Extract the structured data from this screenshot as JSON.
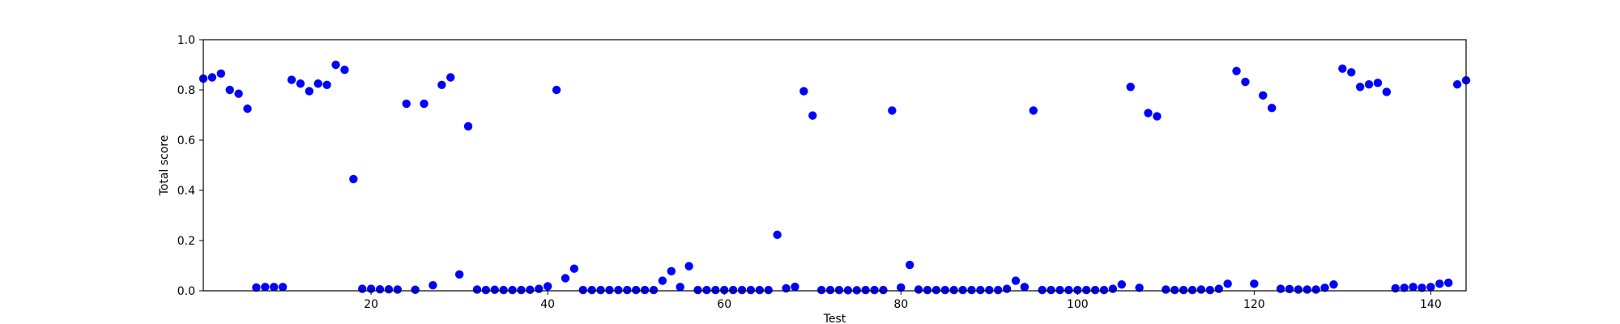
{
  "chart_data": {
    "type": "scatter",
    "xlabel": "Test",
    "ylabel": "Total score",
    "xlim": [
      1,
      144
    ],
    "ylim": [
      0.0,
      1.0
    ],
    "xticks": [
      20,
      40,
      60,
      80,
      100,
      120,
      140
    ],
    "yticks": [
      0.0,
      0.2,
      0.4,
      0.6,
      0.8,
      1.0
    ],
    "ytick_labels": [
      "0.0",
      "0.2",
      "0.4",
      "0.6",
      "0.8",
      "1.0"
    ],
    "grid": false,
    "marker_color": "#0000ff",
    "series": [
      {
        "x": [
          1,
          2,
          3,
          4,
          5,
          6,
          7,
          8,
          9,
          10,
          11,
          12,
          13,
          14,
          15,
          16,
          17,
          18,
          19,
          20,
          21,
          22,
          23,
          24,
          25,
          26,
          27,
          28,
          29,
          30,
          31,
          32,
          33,
          34,
          35,
          36,
          37,
          38,
          39,
          40,
          41,
          42,
          43,
          44,
          45,
          46,
          47,
          48,
          49,
          50,
          51,
          52,
          53,
          54,
          55,
          56,
          57,
          58,
          59,
          60,
          61,
          62,
          63,
          64,
          65,
          66,
          67,
          68,
          69,
          70,
          71,
          72,
          73,
          74,
          75,
          76,
          77,
          78,
          79,
          80,
          81,
          82,
          83,
          84,
          85,
          86,
          87,
          88,
          89,
          90,
          91,
          92,
          93,
          94,
          95,
          96,
          97,
          98,
          99,
          100,
          101,
          102,
          103,
          104,
          105,
          106,
          107,
          108,
          109,
          110,
          111,
          112,
          113,
          114,
          115,
          116,
          117,
          118,
          119,
          120,
          121,
          122,
          123,
          124,
          125,
          126,
          127,
          128,
          129,
          130,
          131,
          132,
          133,
          134,
          135,
          136,
          137,
          138,
          139,
          140,
          141,
          142,
          143,
          144
        ],
        "y": [
          0.845,
          0.85,
          0.865,
          0.8,
          0.785,
          0.725,
          0.013,
          0.015,
          0.015,
          0.015,
          0.84,
          0.825,
          0.795,
          0.825,
          0.82,
          0.9,
          0.88,
          0.445,
          0.008,
          0.008,
          0.006,
          0.006,
          0.005,
          0.745,
          0.004,
          0.745,
          0.022,
          0.82,
          0.85,
          0.065,
          0.655,
          0.005,
          0.003,
          0.004,
          0.003,
          0.003,
          0.003,
          0.004,
          0.008,
          0.018,
          0.8,
          0.05,
          0.088,
          0.003,
          0.003,
          0.003,
          0.003,
          0.003,
          0.003,
          0.003,
          0.003,
          0.003,
          0.04,
          0.078,
          0.015,
          0.098,
          0.003,
          0.003,
          0.003,
          0.003,
          0.003,
          0.003,
          0.003,
          0.003,
          0.003,
          0.223,
          0.01,
          0.016,
          0.795,
          0.698,
          0.003,
          0.003,
          0.003,
          0.002,
          0.002,
          0.003,
          0.003,
          0.003,
          0.718,
          0.013,
          0.103,
          0.005,
          0.003,
          0.003,
          0.003,
          0.003,
          0.003,
          0.003,
          0.003,
          0.003,
          0.003,
          0.008,
          0.04,
          0.015,
          0.718,
          0.003,
          0.003,
          0.003,
          0.003,
          0.003,
          0.003,
          0.003,
          0.003,
          0.008,
          0.025,
          0.812,
          0.012,
          0.708,
          0.695,
          0.005,
          0.003,
          0.003,
          0.003,
          0.005,
          0.003,
          0.008,
          0.028,
          0.875,
          0.832,
          0.028,
          0.778,
          0.728,
          0.008,
          0.007,
          0.005,
          0.005,
          0.005,
          0.012,
          0.025,
          0.885,
          0.87,
          0.812,
          0.822,
          0.828,
          0.792,
          0.01,
          0.012,
          0.015,
          0.012,
          0.015,
          0.028,
          0.032,
          0.822,
          0.838
        ]
      }
    ]
  }
}
